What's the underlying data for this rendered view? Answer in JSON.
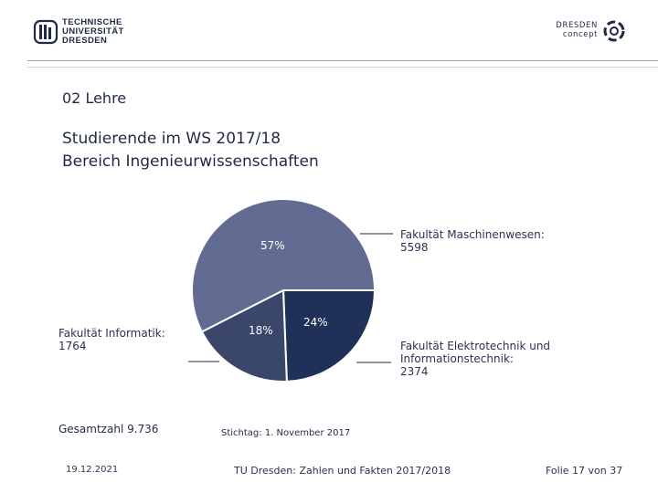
{
  "header": {
    "tud_logo_lines": [
      "TECHNISCHE",
      "UNIVERSITÄT",
      "DRESDEN"
    ],
    "dresden_concept_lines": [
      "DRESDEN",
      "concept"
    ]
  },
  "section_label": "02 Lehre",
  "title_lines": [
    "Studierende im WS 2017/18",
    "Bereich Ingenieurwissenschaften"
  ],
  "chart_data": {
    "type": "pie",
    "title": "Studierende im WS 2017/18 – Bereich Ingenieurwissenschaften",
    "slices": [
      {
        "name": "Fakultät Maschinenwesen",
        "value": 5598,
        "percent_label": "57%",
        "color": "#626b91"
      },
      {
        "name": "Fakultät Elektrotechnik und Informationstechnik",
        "value": 2374,
        "percent_label": "24%",
        "color": "#1f3158"
      },
      {
        "name": "Fakultät Informatik",
        "value": 1764,
        "percent_label": "18%",
        "color": "#3b466b"
      }
    ],
    "total": 9736,
    "legend_labels": [
      {
        "lines": [
          "Fakultät Maschinenwesen:",
          "5598"
        ]
      },
      {
        "lines": [
          "Fakultät Elektrotechnik und",
          "Informationstechnik:",
          "2374"
        ]
      },
      {
        "lines": [
          "Fakultät Informatik:",
          "1764"
        ]
      }
    ]
  },
  "total_label": "Gesamtzahl 9.736",
  "reference_date": "Stichtag: 1. November 2017",
  "footer": {
    "date": "19.12.2021",
    "center": "TU Dresden: Zahlen und Fakten 2017/2018",
    "slide": "Folie 17 von 37"
  }
}
